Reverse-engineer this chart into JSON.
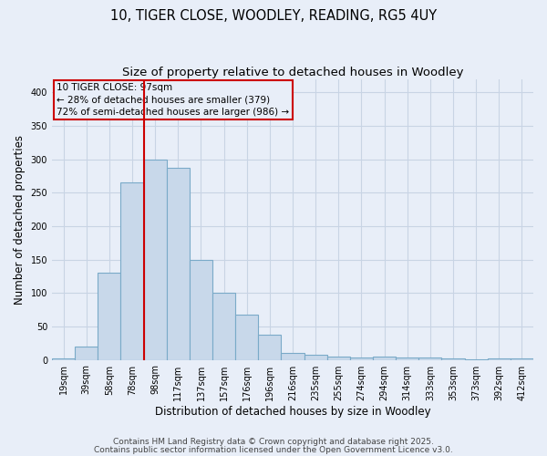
{
  "title1": "10, TIGER CLOSE, WOODLEY, READING, RG5 4UY",
  "title2": "Size of property relative to detached houses in Woodley",
  "xlabel": "Distribution of detached houses by size in Woodley",
  "ylabel": "Number of detached properties",
  "bar_labels": [
    "19sqm",
    "39sqm",
    "58sqm",
    "78sqm",
    "98sqm",
    "117sqm",
    "137sqm",
    "157sqm",
    "176sqm",
    "196sqm",
    "216sqm",
    "235sqm",
    "255sqm",
    "274sqm",
    "294sqm",
    "314sqm",
    "333sqm",
    "353sqm",
    "373sqm",
    "392sqm",
    "412sqm"
  ],
  "bar_values": [
    2,
    20,
    130,
    265,
    300,
    287,
    150,
    100,
    68,
    37,
    11,
    7,
    5,
    4,
    5,
    4,
    3,
    2,
    1,
    2,
    2
  ],
  "bar_color": "#c8d8ea",
  "bar_edge_color": "#7aaac8",
  "grid_color": "#c8d4e4",
  "background_color": "#e8eef8",
  "vline_x_index": 3.5,
  "vline_color": "#cc0000",
  "annotation_text": "10 TIGER CLOSE: 97sqm\n← 28% of detached houses are smaller (379)\n72% of semi-detached houses are larger (986) →",
  "annotation_box_color": "#cc0000",
  "ylim": [
    0,
    420
  ],
  "yticks": [
    0,
    50,
    100,
    150,
    200,
    250,
    300,
    350,
    400
  ],
  "footnote1": "Contains HM Land Registry data © Crown copyright and database right 2025.",
  "footnote2": "Contains public sector information licensed under the Open Government Licence v3.0.",
  "title_fontsize": 10.5,
  "subtitle_fontsize": 9.5,
  "axis_label_fontsize": 8.5,
  "tick_fontsize": 7,
  "annotation_fontsize": 7.5,
  "footnote_fontsize": 6.5
}
